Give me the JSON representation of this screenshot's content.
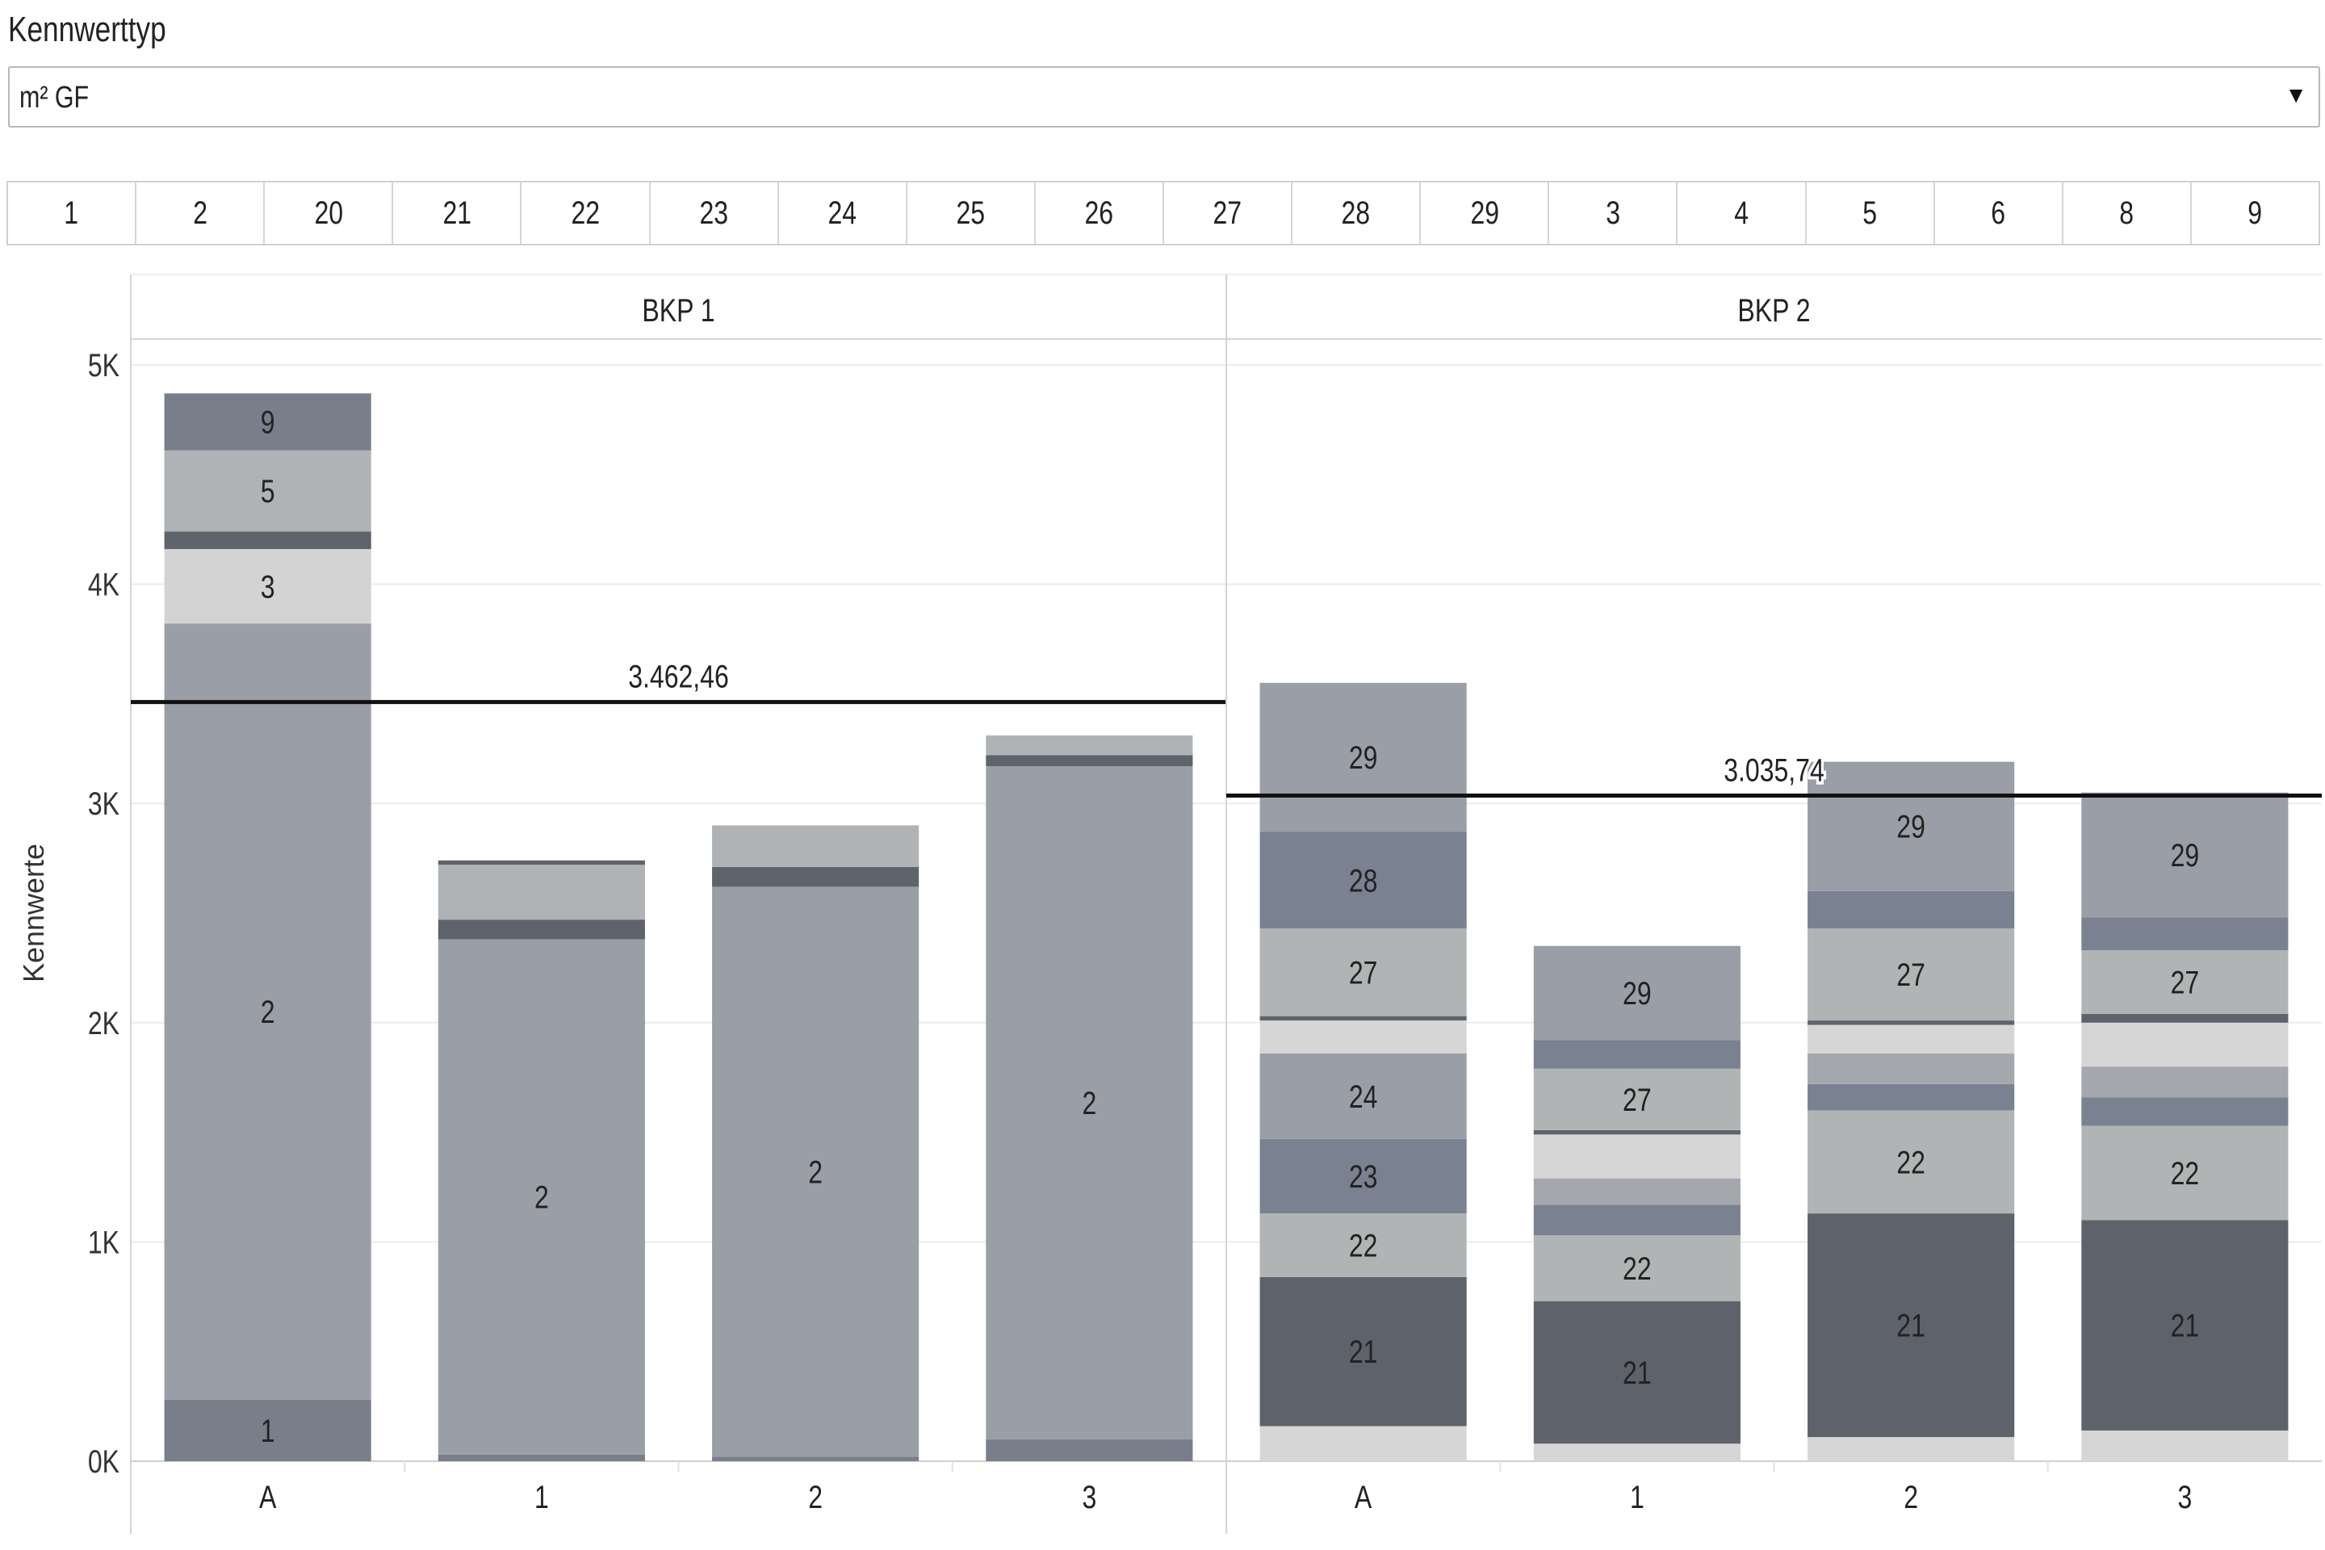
{
  "filter": {
    "label": "Kennwerttyp",
    "value": "m² GF",
    "arrow_icon": "triangle-down-icon"
  },
  "chips": [
    "1",
    "2",
    "20",
    "21",
    "22",
    "23",
    "24",
    "25",
    "26",
    "27",
    "28",
    "29",
    "3",
    "4",
    "5",
    "6",
    "8",
    "9"
  ],
  "chart_data": {
    "type": "bar",
    "stacked": true,
    "ylabel": "Kennwerte",
    "ylim": [
      0,
      5000
    ],
    "yticks": [
      {
        "value": 0,
        "label": "0K"
      },
      {
        "value": 1000,
        "label": "1K"
      },
      {
        "value": 2000,
        "label": "2K"
      },
      {
        "value": 3000,
        "label": "3K"
      },
      {
        "value": 4000,
        "label": "4K"
      },
      {
        "value": 5000,
        "label": "5K"
      }
    ],
    "grid": true,
    "colors": {
      "c1": "#787f8b",
      "c2": "#9a9ea6",
      "c3": "#d3d3d3",
      "c5": "#b0b3b5",
      "c9": "#787f8b",
      "cdark": "#5f636b",
      "c21": "#5e626b",
      "c22": "#b1b4b5",
      "c23": "#7a8190",
      "c24": "#9a9ea6",
      "c27": "#b1b4b5",
      "c28": "#7a8190",
      "c29": "#9a9ea6",
      "clight": "#d6d6d6",
      "cmid": "#a4a8ad"
    },
    "panels": [
      {
        "name": "BKP 1",
        "reference_line": {
          "value": 3462.46,
          "label": "3.462,46"
        },
        "bars": [
          {
            "category": "A",
            "segments": [
              {
                "label": "1",
                "value": 280,
                "color": "c1"
              },
              {
                "label": "2",
                "value": 3540,
                "color": "c2"
              },
              {
                "label": "3",
                "value": 340,
                "color": "c3"
              },
              {
                "label": "",
                "value": 80,
                "color": "cdark"
              },
              {
                "label": "5",
                "value": 370,
                "color": "c5"
              },
              {
                "label": "9",
                "value": 260,
                "color": "c9"
              }
            ]
          },
          {
            "category": "1",
            "segments": [
              {
                "label": "",
                "value": 30,
                "color": "c1"
              },
              {
                "label": "2",
                "value": 2350,
                "color": "c2"
              },
              {
                "label": "",
                "value": 90,
                "color": "cdark"
              },
              {
                "label": "",
                "value": 250,
                "color": "c5"
              },
              {
                "label": "",
                "value": 20,
                "color": "cdark"
              }
            ]
          },
          {
            "category": "2",
            "segments": [
              {
                "label": "",
                "value": 20,
                "color": "c1"
              },
              {
                "label": "2",
                "value": 2600,
                "color": "c2"
              },
              {
                "label": "",
                "value": 90,
                "color": "cdark"
              },
              {
                "label": "",
                "value": 190,
                "color": "c5"
              }
            ]
          },
          {
            "category": "3",
            "segments": [
              {
                "label": "",
                "value": 100,
                "color": "c1"
              },
              {
                "label": "2",
                "value": 3070,
                "color": "c2"
              },
              {
                "label": "",
                "value": 50,
                "color": "cdark"
              },
              {
                "label": "",
                "value": 90,
                "color": "c5"
              }
            ]
          }
        ]
      },
      {
        "name": "BKP 2",
        "reference_line": {
          "value": 3035.74,
          "label": "3.035,74"
        },
        "bars": [
          {
            "category": "A",
            "segments": [
              {
                "label": "",
                "value": 160,
                "color": "clight"
              },
              {
                "label": "21",
                "value": 680,
                "color": "c21"
              },
              {
                "label": "22",
                "value": 290,
                "color": "c22"
              },
              {
                "label": "23",
                "value": 340,
                "color": "c23"
              },
              {
                "label": "24",
                "value": 390,
                "color": "c24"
              },
              {
                "label": "",
                "value": 150,
                "color": "clight"
              },
              {
                "label": "",
                "value": 20,
                "color": "cdark"
              },
              {
                "label": "27",
                "value": 400,
                "color": "c27"
              },
              {
                "label": "28",
                "value": 440,
                "color": "c28"
              },
              {
                "label": "29",
                "value": 680,
                "color": "c29"
              }
            ]
          },
          {
            "category": "1",
            "segments": [
              {
                "label": "",
                "value": 80,
                "color": "clight"
              },
              {
                "label": "21",
                "value": 650,
                "color": "c21"
              },
              {
                "label": "22",
                "value": 300,
                "color": "c22"
              },
              {
                "label": "",
                "value": 140,
                "color": "c23"
              },
              {
                "label": "",
                "value": 120,
                "color": "cmid"
              },
              {
                "label": "",
                "value": 200,
                "color": "clight"
              },
              {
                "label": "",
                "value": 20,
                "color": "cdark"
              },
              {
                "label": "27",
                "value": 280,
                "color": "c27"
              },
              {
                "label": "",
                "value": 130,
                "color": "c28"
              },
              {
                "label": "29",
                "value": 430,
                "color": "c29"
              }
            ]
          },
          {
            "category": "2",
            "segments": [
              {
                "label": "",
                "value": 110,
                "color": "clight"
              },
              {
                "label": "21",
                "value": 1020,
                "color": "c21"
              },
              {
                "label": "22",
                "value": 470,
                "color": "c22"
              },
              {
                "label": "",
                "value": 120,
                "color": "c23"
              },
              {
                "label": "",
                "value": 140,
                "color": "cmid"
              },
              {
                "label": "",
                "value": 130,
                "color": "clight"
              },
              {
                "label": "",
                "value": 20,
                "color": "cdark"
              },
              {
                "label": "27",
                "value": 420,
                "color": "c27"
              },
              {
                "label": "",
                "value": 170,
                "color": "c28"
              },
              {
                "label": "29",
                "value": 590,
                "color": "c29"
              }
            ]
          },
          {
            "category": "3",
            "segments": [
              {
                "label": "",
                "value": 140,
                "color": "clight"
              },
              {
                "label": "21",
                "value": 960,
                "color": "c21"
              },
              {
                "label": "22",
                "value": 430,
                "color": "c22"
              },
              {
                "label": "",
                "value": 130,
                "color": "c23"
              },
              {
                "label": "",
                "value": 140,
                "color": "cmid"
              },
              {
                "label": "",
                "value": 200,
                "color": "clight"
              },
              {
                "label": "",
                "value": 40,
                "color": "cdark"
              },
              {
                "label": "27",
                "value": 290,
                "color": "c27"
              },
              {
                "label": "",
                "value": 150,
                "color": "c28"
              },
              {
                "label": "29",
                "value": 570,
                "color": "c29"
              }
            ]
          }
        ]
      }
    ]
  }
}
